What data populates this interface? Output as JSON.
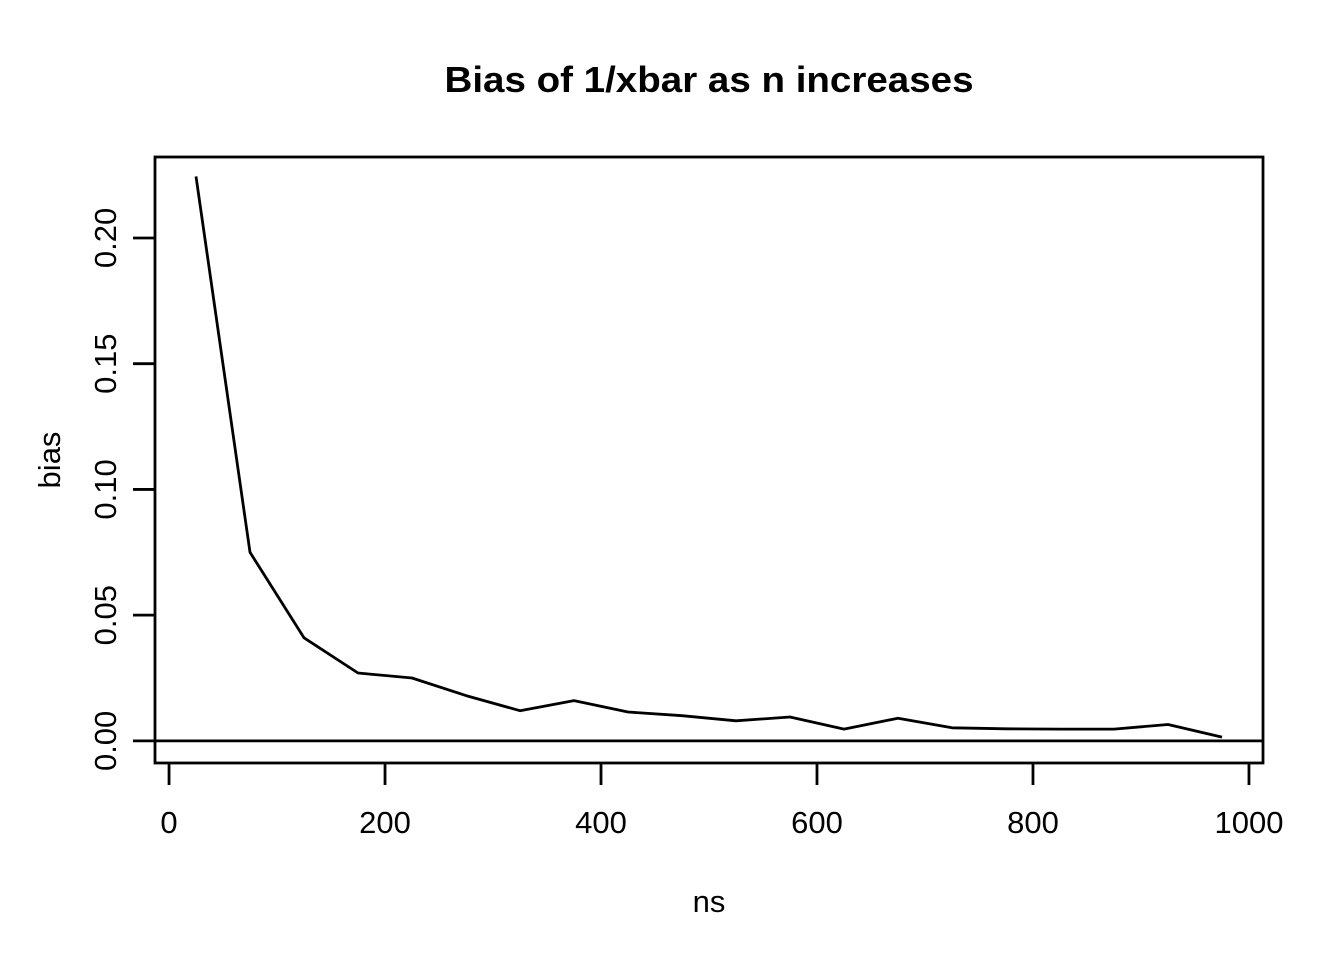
{
  "title": "Bias of 1/xbar as n increases",
  "chart_data": {
    "type": "line",
    "title": "Bias of 1/xbar as n increases",
    "xlabel": "ns",
    "ylabel": "bias",
    "x": [
      25,
      75,
      125,
      175,
      225,
      275,
      325,
      375,
      425,
      475,
      525,
      575,
      625,
      675,
      725,
      775,
      825,
      875,
      925,
      975
    ],
    "y": [
      0.2245,
      0.075,
      0.041,
      0.027,
      0.025,
      0.018,
      0.012,
      0.016,
      0.0115,
      0.01,
      0.008,
      0.0095,
      0.0047,
      0.009,
      0.0052,
      0.0048,
      0.0047,
      0.0047,
      0.0065,
      0.0015
    ],
    "xlim": [
      -13,
      1013
    ],
    "ylim": [
      -0.0088,
      0.2322
    ],
    "xticks": [
      0,
      200,
      400,
      600,
      800,
      1000
    ],
    "xtick_labels": [
      "0",
      "200",
      "400",
      "600",
      "800",
      "1000"
    ],
    "yticks": [
      0,
      0.05,
      0.1,
      0.15,
      0.2
    ],
    "ytick_labels": [
      "0.00",
      "0.05",
      "0.10",
      "0.15",
      "0.20"
    ],
    "hline": 0,
    "grid": false,
    "legend": "none",
    "line_color": "#000000",
    "axis_color": "#000000",
    "background": "#ffffff"
  }
}
